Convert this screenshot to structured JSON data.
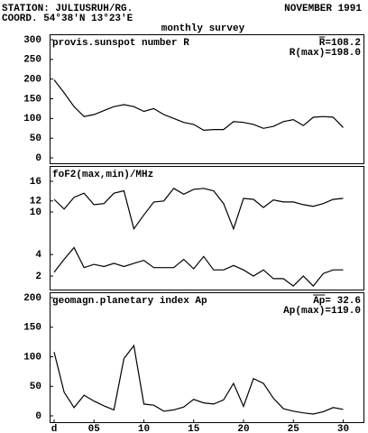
{
  "header": {
    "station": "STATION: JULIUSRUH/RG.",
    "coord": "COORD. 54°38'N 13°23'E",
    "date": "NOVEMBER 1991",
    "subtitle": "monthly survey"
  },
  "chart_data": [
    {
      "type": "line",
      "title": "provis.sunspot number R",
      "annotations": [
        "R=108.2",
        "R(max)=198.0"
      ],
      "color": "#000000",
      "x": [
        1,
        2,
        3,
        4,
        5,
        6,
        7,
        8,
        9,
        10,
        11,
        12,
        13,
        14,
        15,
        16,
        17,
        18,
        19,
        20,
        21,
        22,
        23,
        24,
        25,
        26,
        27,
        28,
        29,
        30
      ],
      "values": [
        198,
        165,
        130,
        105,
        110,
        120,
        130,
        135,
        130,
        118,
        125,
        110,
        100,
        90,
        85,
        70,
        72,
        72,
        92,
        90,
        85,
        75,
        80,
        92,
        97,
        82,
        103,
        105,
        103,
        77
      ],
      "xlim": [
        1,
        30
      ],
      "ylim": [
        0,
        300
      ],
      "yticks": [
        0,
        50,
        100,
        150,
        200,
        250,
        300
      ]
    },
    {
      "type": "line",
      "title": "foF2(max,min)/MHz",
      "yscale": "sqrt",
      "x": [
        1,
        2,
        3,
        4,
        5,
        6,
        7,
        8,
        9,
        10,
        11,
        12,
        13,
        14,
        15,
        16,
        17,
        18,
        19,
        20,
        21,
        22,
        23,
        24,
        25,
        26,
        27,
        28,
        29,
        30
      ],
      "series": [
        {
          "color": "#000000",
          "values": [
            12.3,
            10.5,
            12.7,
            13.5,
            11.3,
            11.5,
            13.5,
            14,
            7.3,
            9.5,
            11.8,
            12,
            14.5,
            13.3,
            14.3,
            14.5,
            14,
            11.5,
            7.3,
            12.5,
            12.3,
            10.8,
            12.2,
            11.8,
            11.8,
            11.3,
            11,
            11.5,
            12.3,
            12.5
          ]
        },
        {
          "color": "#000000",
          "values": [
            2.3,
            3.5,
            4.8,
            2.7,
            3,
            2.8,
            3.1,
            2.8,
            3.1,
            3.4,
            2.7,
            2.7,
            2.7,
            3.5,
            2.6,
            3.8,
            2.5,
            2.5,
            2.9,
            2.5,
            2,
            2.5,
            1.8,
            1.8,
            1.3,
            2,
            1.3,
            2.2,
            2.5,
            2.5
          ]
        }
      ],
      "xlim": [
        1,
        30
      ],
      "ylim": [
        2,
        16
      ],
      "yticks": [
        2,
        4,
        10,
        12,
        16
      ]
    },
    {
      "type": "line",
      "title": "geomagn.planetary index Ap",
      "annotations": [
        "Ap= 32.6",
        "Ap(max)=119.0"
      ],
      "color": "#000000",
      "x": [
        1,
        2,
        3,
        4,
        5,
        6,
        7,
        8,
        9,
        10,
        11,
        12,
        13,
        14,
        15,
        16,
        17,
        18,
        19,
        20,
        21,
        22,
        23,
        24,
        25,
        26,
        27,
        28,
        29,
        30
      ],
      "values": [
        108,
        40,
        14,
        35,
        25,
        17,
        10,
        97,
        119,
        20,
        18,
        8,
        10,
        15,
        28,
        22,
        20,
        27,
        55,
        16,
        63,
        55,
        30,
        12,
        8,
        5,
        3,
        7,
        14,
        11
      ],
      "xlim": [
        1,
        30
      ],
      "ylim": [
        0,
        200
      ],
      "yticks": [
        0,
        50,
        100,
        150,
        200
      ],
      "xticks": [
        {
          "value": 1,
          "label": "d"
        },
        {
          "value": 5,
          "label": "05"
        },
        10,
        15,
        20,
        25,
        30
      ]
    }
  ]
}
